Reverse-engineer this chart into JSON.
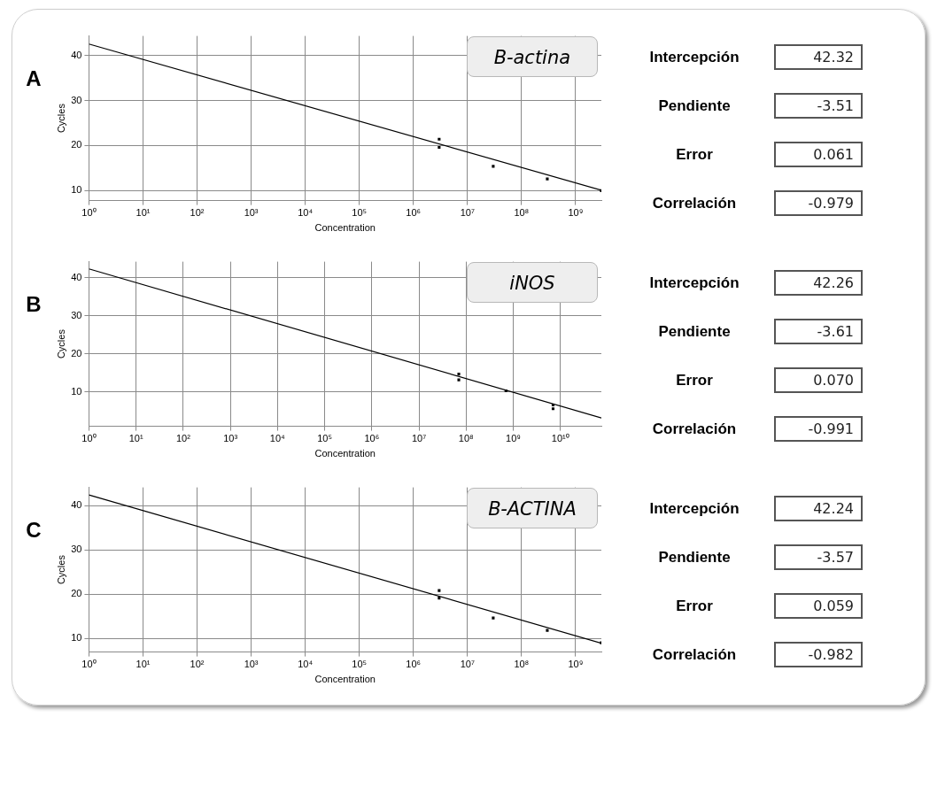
{
  "chart_data": [
    {
      "type": "scatter",
      "title": "A",
      "xlabel": "Concentration",
      "ylabel": "Cycles",
      "log": "x",
      "grid": true,
      "annotations": [
        "B-actina"
      ],
      "xlim": [
        1,
        3000000000
      ],
      "xticks": [
        {
          "value": 1,
          "label": "10⁰"
        },
        {
          "value": 10,
          "label": "10¹"
        },
        {
          "value": 100,
          "label": "10²"
        },
        {
          "value": 1000,
          "label": "10³"
        },
        {
          "value": 10000,
          "label": "10⁴"
        },
        {
          "value": 100000,
          "label": "10⁵"
        },
        {
          "value": 1000000,
          "label": "10⁶"
        },
        {
          "value": 10000000,
          "label": "10⁷"
        },
        {
          "value": 100000000,
          "label": "10⁸"
        },
        {
          "value": 1000000000,
          "label": "10⁹"
        }
      ],
      "ylim": [
        7.8,
        44.3
      ],
      "yticks": [
        10,
        20,
        30,
        40
      ],
      "series": [
        {
          "color": "#000000",
          "marker": "square",
          "x": [
            3000000,
            3000000,
            30000000,
            300000000,
            3000000000
          ],
          "values": [
            21.4,
            19.6,
            15.4,
            12.6,
            10.0
          ]
        },
        {
          "type": "line",
          "color": "#000000",
          "x": [
            1,
            3000000000
          ],
          "values": [
            42.5,
            10.1
          ]
        }
      ]
    },
    {
      "type": "other",
      "annotations": [
        "Intercepción",
        "42.32",
        "Pendiente",
        "-3.51",
        "Error",
        "0.061",
        "Correlación",
        "-0.979"
      ]
    },
    {
      "type": "scatter",
      "title": "B",
      "xlabel": "Concentration",
      "ylabel": "Cycles",
      "log": "x",
      "grid": true,
      "annotations": [
        "iNOS"
      ],
      "xlim": [
        1,
        74000000000
      ],
      "xticks": [
        {
          "value": 1,
          "label": "10⁰"
        },
        {
          "value": 10,
          "label": "10¹"
        },
        {
          "value": 100,
          "label": "10²"
        },
        {
          "value": 1000,
          "label": "10³"
        },
        {
          "value": 10000,
          "label": "10⁴"
        },
        {
          "value": 100000,
          "label": "10⁵"
        },
        {
          "value": 1000000,
          "label": "10⁶"
        },
        {
          "value": 10000000,
          "label": "10⁷"
        },
        {
          "value": 100000000,
          "label": "10⁸"
        },
        {
          "value": 1000000000,
          "label": "10⁹"
        },
        {
          "value": 10000000000,
          "label": "10¹⁰"
        }
      ],
      "ylim": [
        1,
        44.2
      ],
      "yticks": [
        10,
        20,
        30,
        40
      ],
      "series": [
        {
          "color": "#000000",
          "marker": "square",
          "x": [
            70000000,
            70000000,
            700000000,
            7000000000,
            7000000000
          ],
          "values": [
            14.7,
            13.2,
            10.3,
            6.6,
            5.6
          ]
        },
        {
          "type": "line",
          "color": "#000000",
          "x": [
            1,
            74000000000
          ],
          "values": [
            42.3,
            3.2
          ]
        }
      ]
    },
    {
      "type": "other",
      "annotations": [
        "Intercepción",
        "42.26",
        "Pendiente",
        "-3.61",
        "Error",
        "0.070",
        "Correlación",
        "-0.991"
      ]
    },
    {
      "type": "scatter",
      "title": "C",
      "xlabel": "Concentration",
      "ylabel": "Cycles",
      "log": "x",
      "grid": true,
      "annotations": [
        "B-ACTINA"
      ],
      "xlim": [
        1,
        3000000000
      ],
      "xticks": [
        {
          "value": 1,
          "label": "10⁰"
        },
        {
          "value": 10,
          "label": "10¹"
        },
        {
          "value": 100,
          "label": "10²"
        },
        {
          "value": 1000,
          "label": "10³"
        },
        {
          "value": 10000,
          "label": "10⁴"
        },
        {
          "value": 100000,
          "label": "10⁵"
        },
        {
          "value": 1000000,
          "label": "10⁶"
        },
        {
          "value": 10000000,
          "label": "10⁷"
        },
        {
          "value": 100000000,
          "label": "10⁸"
        },
        {
          "value": 1000000000,
          "label": "10⁹"
        }
      ],
      "ylim": [
        6.9,
        44.1
      ],
      "yticks": [
        10,
        20,
        30,
        40
      ],
      "series": [
        {
          "color": "#000000",
          "marker": "square",
          "x": [
            3000000,
            3000000,
            30000000,
            300000000,
            3000000000
          ],
          "values": [
            20.8,
            19.1,
            14.6,
            11.8,
            9.0
          ]
        },
        {
          "type": "line",
          "color": "#000000",
          "x": [
            1,
            3000000000
          ],
          "values": [
            42.4,
            8.9
          ]
        }
      ]
    },
    {
      "type": "other",
      "annotations": [
        "Intercepción",
        "42.24",
        "Pendiente",
        "-3.57",
        "Error",
        "0.059",
        "Correlación",
        "-0.982"
      ]
    }
  ]
}
